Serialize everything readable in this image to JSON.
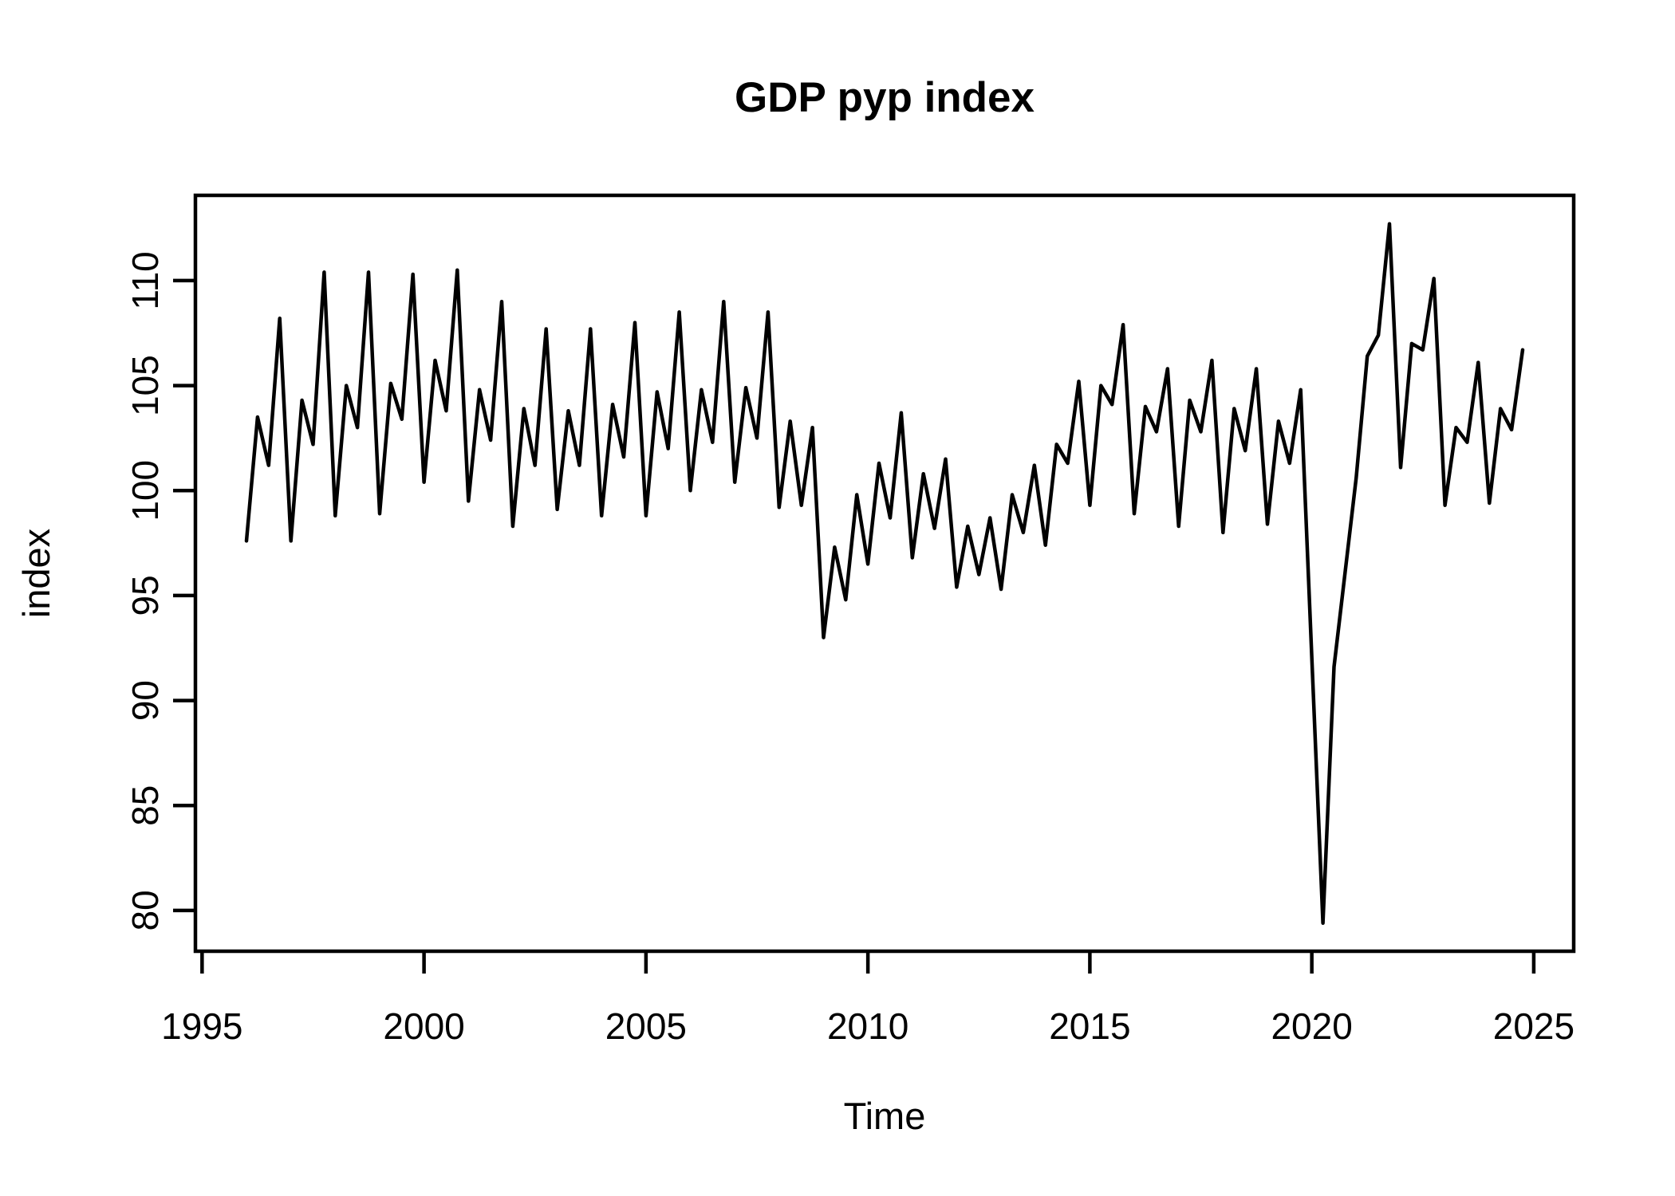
{
  "title": "GDP pyp index",
  "x_axis": {
    "label": "Time",
    "ticks": [
      1995,
      2000,
      2005,
      2010,
      2015,
      2020,
      2025
    ]
  },
  "y_axis": {
    "label": "index",
    "ticks": [
      80,
      85,
      90,
      95,
      100,
      105,
      110
    ]
  },
  "chart_data": {
    "type": "line",
    "title": "GDP pyp index",
    "xlabel": "Time",
    "ylabel": "index",
    "series_name": "GDP pyp index",
    "frequency": "quarterly",
    "start_time": 1996.0,
    "time_step": 0.25,
    "values": [
      97.6,
      103.5,
      101.2,
      108.2,
      97.6,
      104.3,
      102.2,
      110.4,
      98.8,
      105.0,
      103.0,
      110.4,
      98.9,
      105.1,
      103.4,
      110.3,
      100.4,
      106.2,
      103.8,
      110.5,
      99.5,
      104.8,
      102.4,
      109.0,
      98.3,
      103.9,
      101.2,
      107.7,
      99.1,
      103.8,
      101.2,
      107.7,
      98.8,
      104.1,
      101.6,
      108.0,
      98.8,
      104.7,
      102.0,
      108.5,
      100.0,
      104.8,
      102.3,
      109.0,
      100.4,
      104.9,
      102.5,
      108.5,
      99.2,
      103.3,
      99.3,
      103.0,
      93.0,
      97.3,
      94.8,
      99.8,
      96.5,
      101.3,
      98.7,
      103.7,
      96.8,
      100.8,
      98.2,
      101.5,
      95.4,
      98.3,
      96.0,
      98.7,
      95.3,
      99.8,
      98.0,
      101.2,
      97.4,
      102.2,
      101.3,
      105.2,
      99.3,
      105.0,
      104.1,
      107.9,
      98.9,
      104.0,
      102.8,
      105.8,
      98.3,
      104.3,
      102.8,
      106.2,
      98.0,
      103.9,
      101.9,
      105.8,
      98.4,
      103.3,
      101.3,
      104.8,
      92.0,
      79.4,
      91.6,
      96.1,
      100.6,
      106.4,
      107.4,
      112.7,
      101.1,
      107.0,
      106.7,
      110.1,
      99.3,
      103.0,
      102.3,
      106.1,
      99.4,
      103.9,
      102.9,
      106.7
    ],
    "x_domain": [
      1994.85,
      2025.9
    ],
    "y_domain": [
      78.06,
      114.06
    ],
    "x_tick_values": [
      1995,
      2000,
      2005,
      2010,
      2015,
      2020,
      2025
    ],
    "y_tick_values": [
      80,
      85,
      90,
      95,
      100,
      105,
      110
    ],
    "line_color": "#000000",
    "background_color": "#ffffff",
    "grid": false,
    "legend": false
  }
}
